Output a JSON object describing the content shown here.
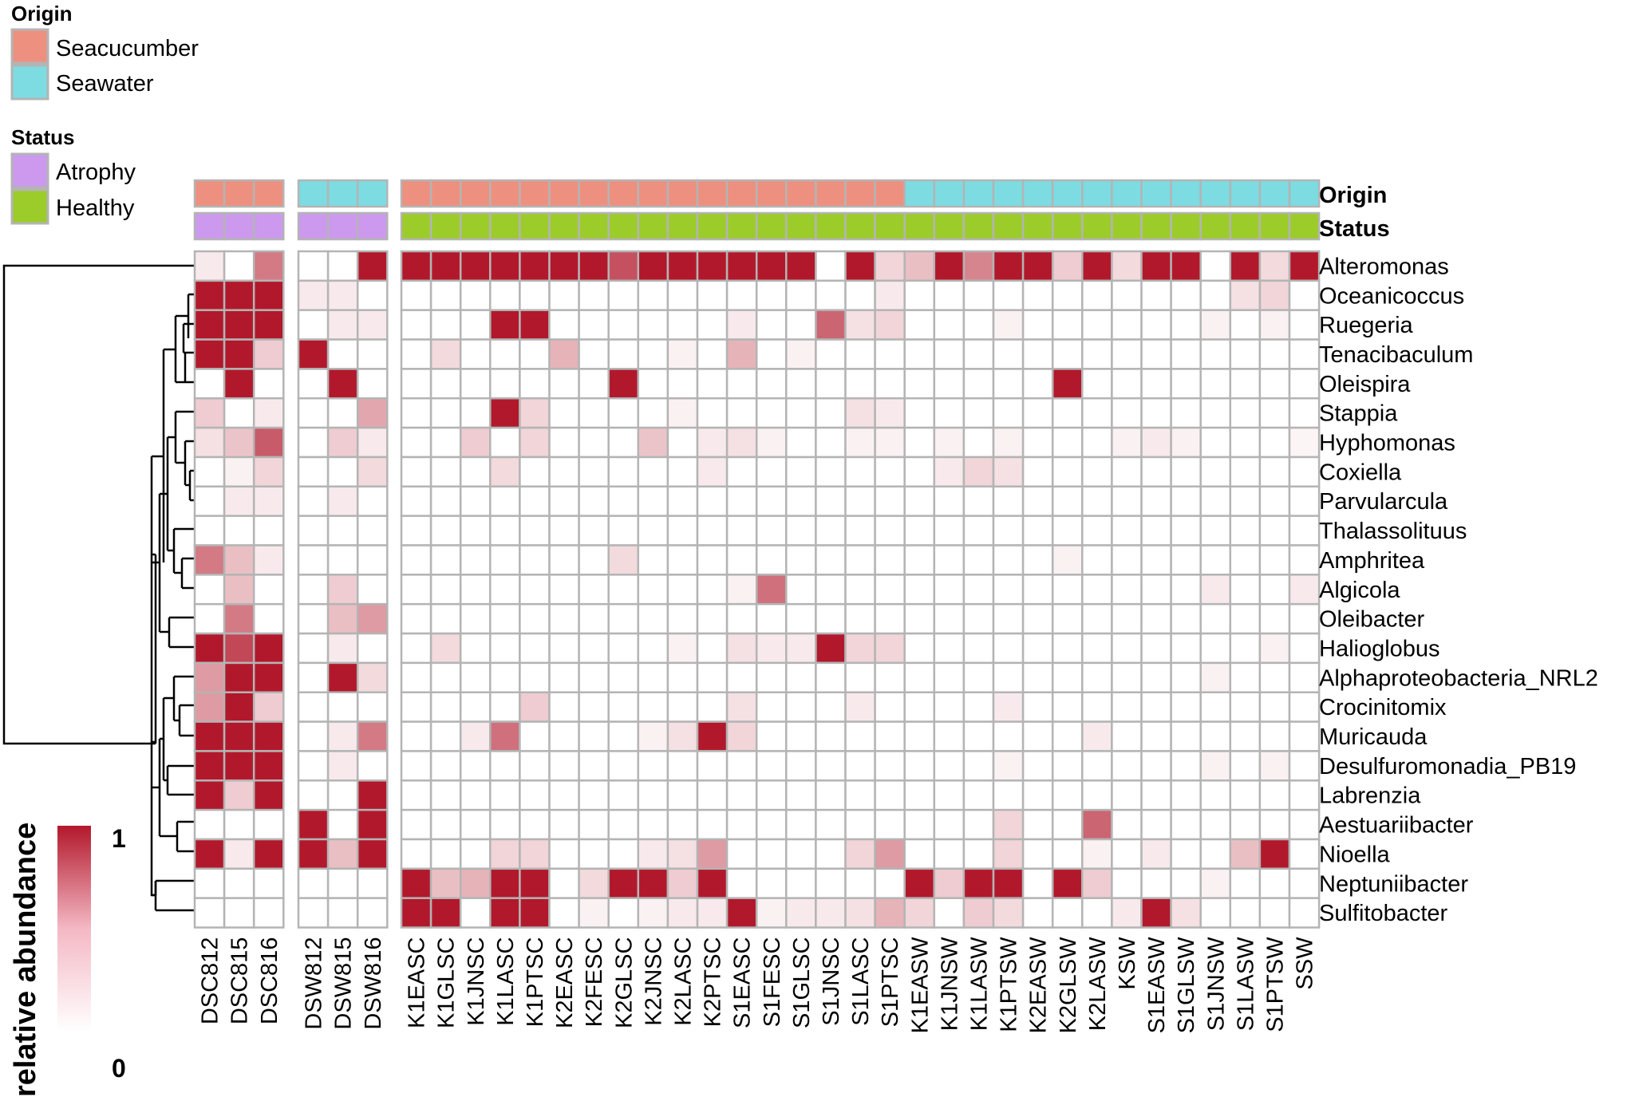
{
  "chart_data": {
    "type": "heatmap",
    "value_range": [
      0,
      1
    ],
    "color_low": "#ffffff",
    "color_high": "#b2182b",
    "border_color": "#b4b4b4",
    "legend": {
      "origin_title": "Origin",
      "status_title": "Status",
      "origin_items": [
        {
          "label": "Seacucumber",
          "color": "#ee9080"
        },
        {
          "label": "Seawater",
          "color": "#7cdce2"
        }
      ],
      "status_items": [
        {
          "label": "Atrophy",
          "color": "#cc99ee"
        },
        {
          "label": "Healthy",
          "color": "#9ccc2a"
        }
      ]
    },
    "annotation_labels": [
      "Origin",
      "Status"
    ],
    "scale": {
      "title": "relative abundance",
      "max_label": "1",
      "min_label": "0"
    },
    "column_groups": [
      [
        "DSC812",
        "DSC815",
        "DSC816"
      ],
      [
        "DSW812",
        "DSW815",
        "DSW816"
      ],
      [
        "K1EASC",
        "K1GLSC",
        "K1JNSC",
        "K1LASC",
        "K1PTSC",
        "K2EASC",
        "K2FESC",
        "K2GLSC",
        "K2JNSC",
        "K2LASC",
        "K2PTSC",
        "S1EASC",
        "S1FESC",
        "S1GLSC",
        "S1JNSC",
        "S1LASC",
        "S1PTSC",
        "K1EASW",
        "K1JNSW",
        "K1LASW",
        "K1PTSW",
        "K2EASW",
        "K2GLSW",
        "K2LASW",
        "KSW",
        "S1EASW",
        "S1GLSW",
        "S1JNSW",
        "S1LASW",
        "S1PTSW",
        "SSW"
      ]
    ],
    "column_origin": [
      "Seacucumber",
      "Seacucumber",
      "Seacucumber",
      "Seawater",
      "Seawater",
      "Seawater",
      "Seacucumber",
      "Seacucumber",
      "Seacucumber",
      "Seacucumber",
      "Seacucumber",
      "Seacucumber",
      "Seacucumber",
      "Seacucumber",
      "Seacucumber",
      "Seacucumber",
      "Seacucumber",
      "Seacucumber",
      "Seacucumber",
      "Seacucumber",
      "Seacucumber",
      "Seacucumber",
      "Seacucumber",
      "Seawater",
      "Seawater",
      "Seawater",
      "Seawater",
      "Seawater",
      "Seawater",
      "Seawater",
      "Seawater",
      "Seawater",
      "Seawater",
      "Seawater",
      "Seawater",
      "Seawater",
      "Seawater"
    ],
    "column_status": [
      "Atrophy",
      "Atrophy",
      "Atrophy",
      "Atrophy",
      "Atrophy",
      "Atrophy",
      "Healthy",
      "Healthy",
      "Healthy",
      "Healthy",
      "Healthy",
      "Healthy",
      "Healthy",
      "Healthy",
      "Healthy",
      "Healthy",
      "Healthy",
      "Healthy",
      "Healthy",
      "Healthy",
      "Healthy",
      "Healthy",
      "Healthy",
      "Healthy",
      "Healthy",
      "Healthy",
      "Healthy",
      "Healthy",
      "Healthy",
      "Healthy",
      "Healthy",
      "Healthy",
      "Healthy",
      "Healthy",
      "Healthy",
      "Healthy",
      "Healthy"
    ],
    "rows": [
      "Alteromonas",
      "Oceanicoccus",
      "Ruegeria",
      "Tenacibaculum",
      "Oleispira",
      "Stappia",
      "Hyphomonas",
      "Coxiella",
      "Parvularcula",
      "Thalassolituus",
      "Amphritea",
      "Algicola",
      "Oleibacter",
      "Halioglobus",
      "Alphaproteobacteria_NRL2",
      "Crocinitomix",
      "Muricauda",
      "Desulfuromonadia_PB19",
      "Labrenzia",
      "Aestuariibacter",
      "Nioella",
      "Neptuniibacter",
      "Sulfitobacter"
    ],
    "values": [
      [
        0.05,
        0,
        0.5,
        0,
        0,
        1,
        1,
        1,
        1,
        1,
        1,
        1,
        1,
        0.7,
        1,
        1,
        1,
        1,
        1,
        1,
        0,
        1,
        0.12,
        0.2,
        1,
        0.45,
        1,
        1,
        0.15,
        1,
        0.1,
        1,
        1,
        0,
        1,
        0.1,
        1
      ],
      [
        1,
        1,
        1,
        0.05,
        0.05,
        0,
        0,
        0,
        0,
        0,
        0,
        0,
        0,
        0,
        0,
        0,
        0,
        0,
        0,
        0,
        0,
        0,
        0.05,
        0,
        0,
        0,
        0,
        0,
        0,
        0,
        0,
        0,
        0,
        0,
        0.08,
        0.12,
        0
      ],
      [
        1,
        1,
        1,
        0,
        0.05,
        0.05,
        0,
        0,
        0,
        1,
        1,
        0,
        0,
        0,
        0,
        0,
        0,
        0.05,
        0,
        0,
        0.6,
        0.08,
        0.12,
        0,
        0,
        0,
        0.03,
        0,
        0,
        0,
        0,
        0,
        0,
        0.03,
        0,
        0.03,
        0
      ],
      [
        1,
        1,
        0.15,
        1,
        0,
        0,
        0,
        0.1,
        0,
        0,
        0,
        0.25,
        0,
        0,
        0,
        0.03,
        0,
        0.25,
        0,
        0.03,
        0,
        0,
        0,
        0,
        0,
        0,
        0,
        0,
        0,
        0,
        0,
        0,
        0,
        0,
        0,
        0,
        0
      ],
      [
        0,
        1,
        0,
        0,
        1,
        0,
        0,
        0,
        0,
        0,
        0,
        0,
        0,
        1,
        0,
        0,
        0,
        0,
        0,
        0,
        0,
        0,
        0,
        0,
        0,
        0,
        0,
        0,
        1,
        0,
        0,
        0,
        0,
        0,
        0,
        0,
        0
      ],
      [
        0.15,
        0,
        0.05,
        0,
        0,
        0.3,
        0,
        0,
        0,
        1,
        0.12,
        0,
        0,
        0,
        0,
        0.03,
        0,
        0,
        0,
        0,
        0,
        0.08,
        0.05,
        0,
        0,
        0,
        0,
        0,
        0,
        0,
        0,
        0,
        0,
        0,
        0,
        0,
        0
      ],
      [
        0.08,
        0.18,
        0.65,
        0,
        0.15,
        0.05,
        0,
        0,
        0.15,
        0,
        0.12,
        0,
        0,
        0,
        0.18,
        0,
        0.05,
        0.08,
        0.03,
        0,
        0,
        0.03,
        0.03,
        0,
        0.03,
        0,
        0.03,
        0,
        0,
        0,
        0.03,
        0.05,
        0.03,
        0,
        0,
        0,
        0.02
      ],
      [
        0,
        0.03,
        0.12,
        0,
        0,
        0.1,
        0,
        0,
        0,
        0.1,
        0,
        0,
        0,
        0,
        0,
        0,
        0.05,
        0,
        0,
        0,
        0,
        0,
        0,
        0,
        0.05,
        0.12,
        0.08,
        0,
        0,
        0,
        0,
        0,
        0,
        0,
        0,
        0,
        0
      ],
      [
        0,
        0.05,
        0.05,
        0,
        0.05,
        0,
        0,
        0,
        0,
        0,
        0,
        0,
        0,
        0,
        0,
        0,
        0,
        0,
        0,
        0,
        0,
        0,
        0,
        0,
        0,
        0,
        0,
        0,
        0,
        0,
        0,
        0,
        0,
        0,
        0,
        0,
        0
      ],
      [
        0,
        0,
        0,
        0,
        0,
        0,
        0,
        0,
        0,
        0,
        0,
        0,
        0,
        0,
        0,
        0,
        0,
        0,
        0,
        0,
        0,
        0,
        0,
        0,
        0,
        0,
        0,
        0,
        0,
        0,
        0,
        0,
        0,
        0,
        0,
        0,
        0
      ],
      [
        0.5,
        0.2,
        0.05,
        0,
        0,
        0,
        0,
        0,
        0,
        0,
        0,
        0,
        0,
        0.1,
        0,
        0,
        0,
        0,
        0,
        0,
        0,
        0,
        0,
        0,
        0,
        0,
        0,
        0,
        0.03,
        0,
        0,
        0,
        0,
        0,
        0,
        0,
        0
      ],
      [
        0,
        0.2,
        0,
        0,
        0.15,
        0,
        0,
        0,
        0,
        0,
        0,
        0,
        0,
        0,
        0,
        0,
        0,
        0.03,
        0.55,
        0,
        0,
        0,
        0,
        0,
        0,
        0,
        0,
        0,
        0,
        0,
        0,
        0,
        0,
        0.05,
        0,
        0,
        0.05
      ],
      [
        0,
        0.5,
        0,
        0,
        0.2,
        0.35,
        0,
        0,
        0,
        0,
        0,
        0,
        0,
        0,
        0,
        0,
        0,
        0,
        0,
        0,
        0,
        0,
        0,
        0,
        0,
        0,
        0,
        0,
        0,
        0,
        0,
        0,
        0,
        0,
        0,
        0,
        0
      ],
      [
        1,
        0.75,
        1,
        0,
        0.05,
        0,
        0,
        0.1,
        0,
        0,
        0,
        0,
        0,
        0,
        0,
        0.03,
        0,
        0.08,
        0.05,
        0.05,
        1,
        0.12,
        0.12,
        0,
        0,
        0,
        0,
        0,
        0,
        0,
        0,
        0,
        0,
        0,
        0,
        0.03,
        0
      ],
      [
        0.35,
        1,
        1,
        0,
        1,
        0.1,
        0,
        0,
        0,
        0,
        0,
        0,
        0,
        0,
        0,
        0,
        0,
        0,
        0,
        0,
        0,
        0,
        0,
        0,
        0,
        0,
        0,
        0,
        0,
        0,
        0,
        0,
        0,
        0.03,
        0,
        0,
        0
      ],
      [
        0.35,
        1,
        0.15,
        0,
        0,
        0,
        0,
        0,
        0,
        0,
        0.15,
        0,
        0,
        0,
        0,
        0,
        0,
        0.08,
        0,
        0,
        0,
        0.05,
        0,
        0,
        0,
        0,
        0.05,
        0,
        0,
        0,
        0,
        0,
        0,
        0,
        0,
        0,
        0
      ],
      [
        1,
        1,
        1,
        0,
        0.05,
        0.5,
        0,
        0,
        0.05,
        0.55,
        0,
        0,
        0,
        0,
        0.03,
        0.08,
        1,
        0.12,
        0,
        0,
        0,
        0,
        0,
        0,
        0,
        0,
        0,
        0,
        0,
        0.05,
        0,
        0,
        0,
        0,
        0,
        0,
        0
      ],
      [
        1,
        1,
        1,
        0,
        0.05,
        0,
        0,
        0,
        0,
        0,
        0,
        0,
        0,
        0,
        0,
        0,
        0,
        0,
        0,
        0,
        0,
        0,
        0,
        0,
        0,
        0,
        0.03,
        0,
        0,
        0,
        0,
        0,
        0,
        0.03,
        0,
        0.03,
        0
      ],
      [
        1,
        0.15,
        1,
        0,
        0,
        1,
        0,
        0,
        0,
        0,
        0,
        0,
        0,
        0,
        0,
        0,
        0,
        0,
        0,
        0,
        0,
        0,
        0,
        0,
        0,
        0,
        0,
        0,
        0,
        0,
        0,
        0,
        0,
        0,
        0,
        0,
        0
      ],
      [
        0,
        0,
        0,
        1,
        0,
        1,
        0,
        0,
        0,
        0,
        0,
        0,
        0,
        0,
        0,
        0,
        0,
        0,
        0,
        0,
        0,
        0,
        0,
        0,
        0,
        0,
        0.12,
        0,
        0,
        0.6,
        0,
        0,
        0,
        0,
        0,
        0,
        0
      ],
      [
        1,
        0.05,
        1,
        1,
        0.2,
        1,
        0,
        0,
        0,
        0.12,
        0.12,
        0,
        0,
        0,
        0.05,
        0.08,
        0.35,
        0,
        0,
        0,
        0,
        0.12,
        0.35,
        0,
        0,
        0,
        0.12,
        0,
        0,
        0.03,
        0,
        0.05,
        0,
        0,
        0.2,
        1,
        0
      ],
      [
        0,
        0,
        0,
        0,
        0,
        0,
        1,
        0.2,
        0.25,
        1,
        1,
        0,
        0.1,
        1,
        1,
        0.15,
        1,
        0,
        0,
        0,
        0,
        0,
        0,
        1,
        0.15,
        1,
        1,
        0,
        1,
        0.15,
        0,
        0,
        0,
        0.03,
        0,
        0,
        0
      ],
      [
        0,
        0,
        0,
        0,
        0,
        0,
        1,
        1,
        0,
        1,
        1,
        0,
        0.03,
        0,
        0.03,
        0.05,
        0.05,
        1,
        0.03,
        0.05,
        0.05,
        0.08,
        0.25,
        0.12,
        0,
        0.15,
        0.1,
        0,
        0,
        0,
        0.05,
        1,
        0.08,
        0,
        0,
        0,
        0
      ]
    ]
  }
}
